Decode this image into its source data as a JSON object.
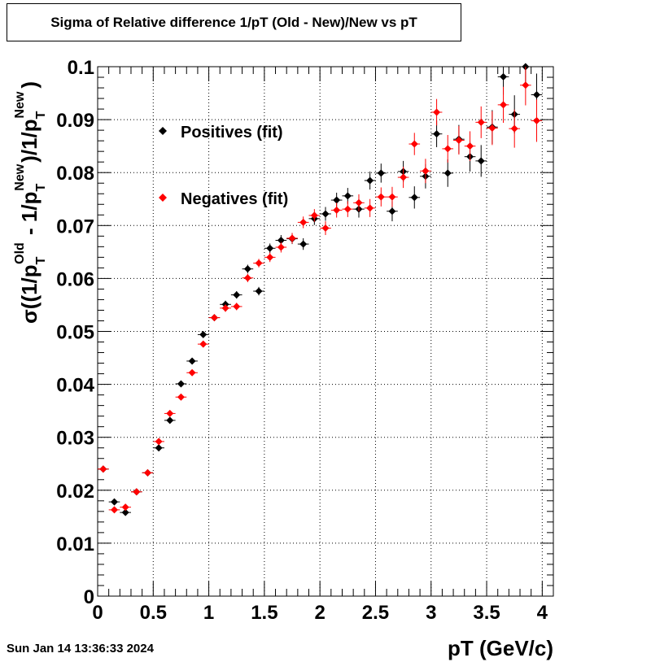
{
  "chart_data": {
    "type": "scatter",
    "title": "Sigma of Relative difference 1/pT (Old - New)/New vs pT",
    "xlabel": "pT (GeV/c)",
    "ylabel": "σ((1/p_T^Old - 1/p_T^New)/1/p_T^New)",
    "xlim": [
      0,
      4.1
    ],
    "ylim": [
      0,
      0.1
    ],
    "x_ticks": [
      "0",
      "0.5",
      "1",
      "1.5",
      "2",
      "2.5",
      "3",
      "3.5",
      "4"
    ],
    "y_ticks": [
      "0",
      "0.01",
      "0.02",
      "0.03",
      "0.04",
      "0.05",
      "0.06",
      "0.07",
      "0.08",
      "0.09",
      "0.1"
    ],
    "grid": true,
    "legend_position": "top-left",
    "series": [
      {
        "name": "Positives (fit)",
        "color": "#000000",
        "x": [
          0.05,
          0.15,
          0.25,
          0.35,
          0.45,
          0.55,
          0.65,
          0.75,
          0.85,
          0.95,
          1.05,
          1.15,
          1.25,
          1.35,
          1.45,
          1.55,
          1.65,
          1.75,
          1.85,
          1.95,
          2.05,
          2.15,
          2.25,
          2.35,
          2.45,
          2.55,
          2.65,
          2.75,
          2.85,
          2.95,
          3.05,
          3.15,
          3.25,
          3.35,
          3.45,
          3.55,
          3.65,
          3.75,
          3.85,
          3.95
        ],
        "y": [
          0.024,
          0.0178,
          0.0158,
          0.0197,
          0.0233,
          0.028,
          0.0332,
          0.0401,
          0.0444,
          0.0494,
          0.0526,
          0.0551,
          0.0569,
          0.0618,
          0.0576,
          0.0657,
          0.0672,
          0.0675,
          0.0665,
          0.0713,
          0.0722,
          0.0748,
          0.0756,
          0.0731,
          0.0785,
          0.0799,
          0.0727,
          0.0802,
          0.0753,
          0.0793,
          0.0873,
          0.0799,
          0.0863,
          0.083,
          0.0822,
          0.0886,
          0.0981,
          0.091,
          0.1,
          0.0947
        ],
        "err": [
          0.0003,
          0.0003,
          0.0003,
          0.0003,
          0.0004,
          0.0004,
          0.0005,
          0.0005,
          0.0005,
          0.0006,
          0.0006,
          0.0007,
          0.0007,
          0.0008,
          0.0008,
          0.0009,
          0.001,
          0.001,
          0.0011,
          0.0012,
          0.0013,
          0.0014,
          0.0015,
          0.0016,
          0.0017,
          0.0018,
          0.0019,
          0.002,
          0.0021,
          0.0023,
          0.0025,
          0.0026,
          0.0027,
          0.0028,
          0.003,
          0.0032,
          0.0034,
          0.0036,
          0.0038,
          0.004
        ]
      },
      {
        "name": "Negatives (fit)",
        "color": "#ff0000",
        "x": [
          0.05,
          0.15,
          0.25,
          0.35,
          0.45,
          0.55,
          0.65,
          0.75,
          0.85,
          0.95,
          1.05,
          1.15,
          1.25,
          1.35,
          1.45,
          1.55,
          1.65,
          1.75,
          1.85,
          1.95,
          2.05,
          2.15,
          2.25,
          2.35,
          2.45,
          2.55,
          2.65,
          2.75,
          2.85,
          2.95,
          3.05,
          3.15,
          3.25,
          3.35,
          3.45,
          3.55,
          3.65,
          3.75,
          3.85,
          3.95
        ],
        "y": [
          0.024,
          0.0163,
          0.0168,
          0.0197,
          0.0233,
          0.0292,
          0.0345,
          0.0376,
          0.0422,
          0.0476,
          0.0526,
          0.0544,
          0.0547,
          0.0601,
          0.0629,
          0.064,
          0.0659,
          0.0676,
          0.0706,
          0.0719,
          0.0695,
          0.0729,
          0.0731,
          0.0743,
          0.0733,
          0.0754,
          0.0754,
          0.0791,
          0.0854,
          0.0803,
          0.0914,
          0.0845,
          0.0861,
          0.085,
          0.0895,
          0.0884,
          0.0928,
          0.0883,
          0.0965,
          0.0898
        ],
        "err": [
          0.0003,
          0.0003,
          0.0003,
          0.0003,
          0.0004,
          0.0004,
          0.0005,
          0.0005,
          0.0005,
          0.0006,
          0.0006,
          0.0007,
          0.0007,
          0.0008,
          0.0008,
          0.0009,
          0.001,
          0.001,
          0.0011,
          0.0012,
          0.0013,
          0.0014,
          0.0015,
          0.0016,
          0.0017,
          0.0018,
          0.0019,
          0.002,
          0.0021,
          0.0023,
          0.0025,
          0.0026,
          0.0027,
          0.0028,
          0.003,
          0.0032,
          0.0034,
          0.0036,
          0.0038,
          0.004
        ]
      }
    ]
  },
  "footer": {
    "datestamp": "Sun Jan 14 13:36:33 2024"
  }
}
